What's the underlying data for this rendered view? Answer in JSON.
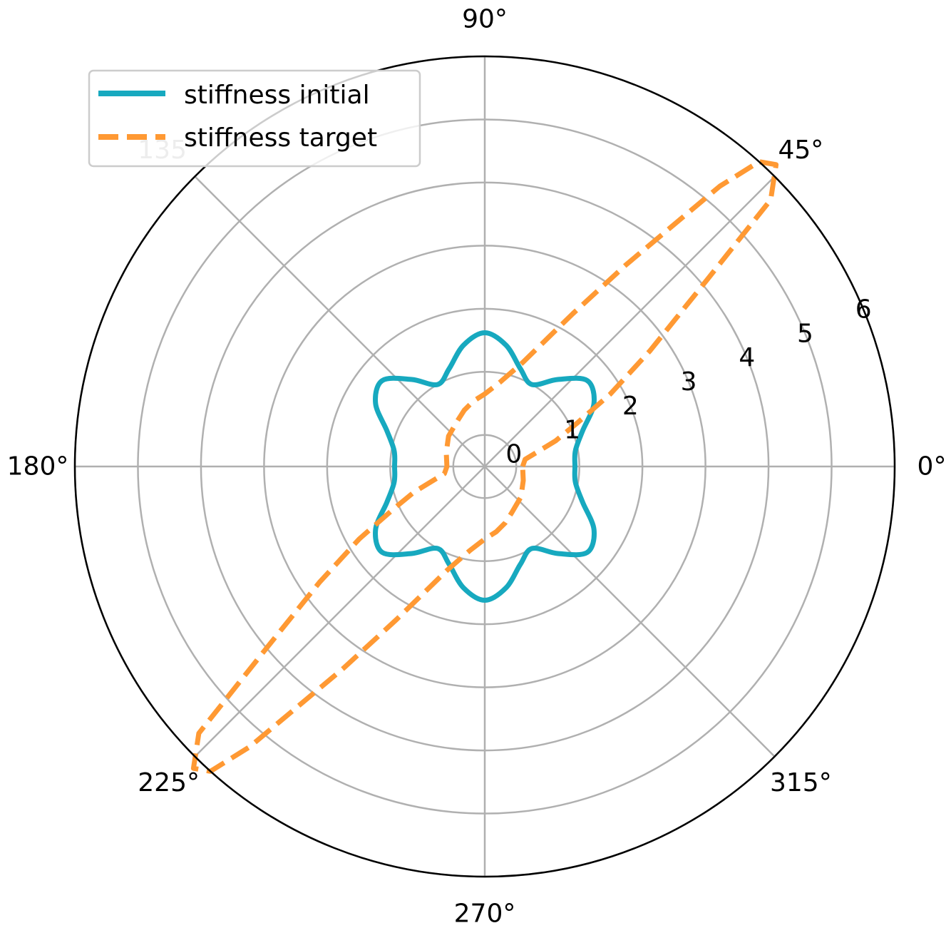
{
  "chart_data": {
    "type": "polar-line",
    "radial_axis": {
      "range": [
        -0.5,
        6
      ],
      "ticks": [
        0,
        1,
        2,
        3,
        4,
        5,
        6
      ],
      "tick_labels": [
        "0",
        "1",
        "2",
        "3",
        "4",
        "5",
        "6"
      ],
      "label_angle_deg": 22.5
    },
    "angular_axis": {
      "unit": "degrees",
      "ticks": [
        0,
        45,
        90,
        135,
        180,
        225,
        270,
        315
      ],
      "tick_labels": [
        "0°",
        "45°",
        "90°",
        "135°",
        "180°",
        "225°",
        "270°",
        "315°"
      ]
    },
    "grid": true,
    "legend": {
      "placement": "upper-left",
      "entries": [
        {
          "label": "stiffness initial",
          "color": "#17a9bf",
          "style": "solid"
        },
        {
          "label": "stiffness target",
          "color": "#ff9933",
          "style": "dashed"
        }
      ]
    },
    "series": [
      {
        "name": "stiffness initial",
        "color": "#17a9bf",
        "style": "solid",
        "theta_deg": [
          0,
          10,
          20,
          30,
          40,
          50,
          60,
          70,
          80,
          90,
          100,
          110,
          120,
          130,
          140,
          150,
          160,
          170,
          180,
          190,
          200,
          210,
          220,
          230,
          240,
          250,
          260,
          270,
          280,
          290,
          300,
          310,
          320,
          330,
          340,
          350
        ],
        "r": [
          0.93,
          0.96,
          1.15,
          1.5,
          1.62,
          1.3,
          1.0,
          1.15,
          1.45,
          1.62,
          1.45,
          1.15,
          1.0,
          1.3,
          1.62,
          1.5,
          1.15,
          0.96,
          0.93,
          0.96,
          1.15,
          1.5,
          1.62,
          1.3,
          1.0,
          1.15,
          1.45,
          1.62,
          1.45,
          1.15,
          1.0,
          1.3,
          1.62,
          1.5,
          1.15,
          0.96
        ]
      },
      {
        "name": "stiffness target",
        "color": "#ff9933",
        "style": "dashed",
        "theta_deg": [
          0,
          10,
          20,
          25,
          30,
          35,
          40,
          43,
          46,
          48,
          50,
          55,
          60,
          70,
          80,
          90,
          100,
          110,
          120,
          140,
          160,
          180,
          190,
          200,
          205,
          210,
          215,
          220,
          223,
          226,
          228,
          230,
          235,
          240,
          250,
          260,
          270,
          280,
          290,
          300,
          320,
          340,
          360
        ],
        "r": [
          0.1,
          0.15,
          0.7,
          1.1,
          1.8,
          2.7,
          4.1,
          5.7,
          6.15,
          6.0,
          5.3,
          3.4,
          2.3,
          1.25,
          0.85,
          0.65,
          0.55,
          0.45,
          0.35,
          0.25,
          0.15,
          0.1,
          0.15,
          0.7,
          1.1,
          1.8,
          2.7,
          4.1,
          5.7,
          6.15,
          6.0,
          5.3,
          3.4,
          2.3,
          1.25,
          0.85,
          0.65,
          0.55,
          0.45,
          0.35,
          0.25,
          0.15,
          0.1
        ]
      }
    ]
  }
}
